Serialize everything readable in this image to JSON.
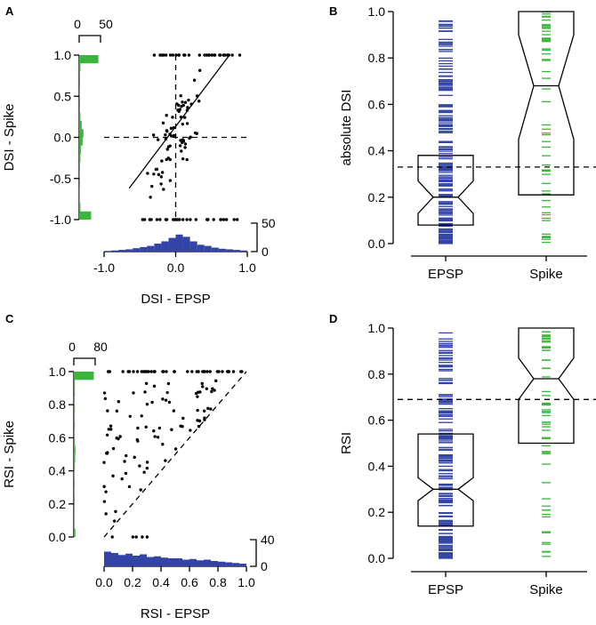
{
  "colors": {
    "epsp": "#3344a6",
    "spike": "#3cb53c",
    "dots": "#000000"
  },
  "panel_labels": [
    "A",
    "B",
    "C",
    "D"
  ],
  "chart_data": [
    {
      "panel": "A",
      "type": "scatter",
      "xlabel": "DSI - EPSP",
      "ylabel": "DSI - Spike",
      "xlim": [
        -1.0,
        1.0
      ],
      "ylim": [
        -1.0,
        1.0
      ],
      "x_ticks": [
        "-1.0",
        "0.0",
        "1.0"
      ],
      "y_ticks": [
        "-1.0",
        "-0.5",
        "0.0",
        "0.5",
        "1.0"
      ],
      "fit_line": {
        "x": [
          -0.65,
          0.75
        ],
        "y": [
          -0.62,
          1.0
        ]
      },
      "ref_lines": {
        "x": 0,
        "y": 0
      },
      "top_hist": {
        "ticks": [
          "50",
          "0"
        ],
        "max": 50,
        "bins": [
          -1.0,
          -0.9,
          -0.8,
          -0.7,
          -0.6,
          -0.5,
          -0.4,
          -0.3,
          -0.2,
          -0.1,
          0.0,
          0.1,
          0.2,
          0.3,
          0.4,
          0.5,
          0.6,
          0.7,
          0.8,
          0.9
        ],
        "counts": [
          1,
          2,
          3,
          4,
          6,
          8,
          10,
          14,
          18,
          24,
          30,
          26,
          18,
          12,
          10,
          7,
          5,
          4,
          3,
          2
        ]
      },
      "side_hist": {
        "ticks": [
          "0",
          "50"
        ],
        "max": 50,
        "bins": [
          -1.0,
          -0.9,
          -0.8,
          -0.7,
          -0.6,
          -0.5,
          -0.4,
          -0.3,
          -0.2,
          -0.1,
          0.0,
          0.1,
          0.2,
          0.3,
          0.4,
          0.5,
          0.6,
          0.7,
          0.8,
          0.9
        ],
        "counts": [
          28,
          3,
          1,
          1,
          2,
          1,
          2,
          3,
          4,
          8,
          10,
          6,
          3,
          2,
          2,
          1,
          2,
          2,
          3,
          45
        ]
      }
    },
    {
      "panel": "B",
      "type": "box",
      "ylabel": "absolute DSI",
      "ylim": [
        0,
        1.0
      ],
      "y_ticks": [
        "0.0",
        "0.2",
        "0.4",
        "0.6",
        "0.8",
        "1.0"
      ],
      "categories": [
        "EPSP",
        "Spike"
      ],
      "threshold": 0.33,
      "boxes": [
        {
          "q1": 0.08,
          "median": 0.2,
          "q3": 0.38,
          "notch_low": 0.13,
          "notch_high": 0.27
        },
        {
          "q1": 0.21,
          "median": 0.68,
          "q3": 1.0,
          "notch_low": 0.45,
          "notch_high": 0.9
        }
      ]
    },
    {
      "panel": "C",
      "type": "scatter",
      "xlabel": "RSI - EPSP",
      "ylabel": "RSI - Spike",
      "xlim": [
        0,
        1.0
      ],
      "ylim": [
        0,
        1.0
      ],
      "x_ticks": [
        "0.0",
        "0.2",
        "0.4",
        "0.6",
        "0.8",
        "1.0"
      ],
      "y_ticks": [
        "0.0",
        "0.2",
        "0.4",
        "0.6",
        "0.8",
        "1.0"
      ],
      "diag_line": {
        "x": [
          0,
          1.0
        ],
        "y": [
          0,
          1.0
        ]
      },
      "top_hist": {
        "ticks": [
          "40",
          "0"
        ],
        "max": 40,
        "bins": [
          0.0,
          0.05,
          0.1,
          0.15,
          0.2,
          0.25,
          0.3,
          0.35,
          0.4,
          0.45,
          0.5,
          0.55,
          0.6,
          0.65,
          0.7,
          0.75,
          0.8,
          0.85,
          0.9,
          0.95
        ],
        "counts": [
          22,
          20,
          17,
          19,
          16,
          18,
          14,
          15,
          13,
          12,
          12,
          10,
          11,
          9,
          10,
          8,
          7,
          6,
          5,
          4
        ]
      },
      "side_hist": {
        "ticks": [
          "0",
          "80"
        ],
        "max": 80,
        "bins": [
          0.0,
          0.05,
          0.1,
          0.15,
          0.2,
          0.25,
          0.3,
          0.35,
          0.4,
          0.45,
          0.5,
          0.55,
          0.6,
          0.65,
          0.7,
          0.75,
          0.8,
          0.85,
          0.9,
          0.95
        ],
        "counts": [
          6,
          1,
          1,
          2,
          3,
          2,
          3,
          2,
          4,
          5,
          6,
          4,
          3,
          4,
          3,
          4,
          3,
          4,
          4,
          75
        ]
      }
    },
    {
      "panel": "D",
      "type": "box",
      "ylabel": "RSI",
      "ylim": [
        0,
        1.0
      ],
      "y_ticks": [
        "0.0",
        "0.2",
        "0.4",
        "0.6",
        "0.8",
        "1.0"
      ],
      "categories": [
        "EPSP",
        "Spike"
      ],
      "threshold": 0.69,
      "boxes": [
        {
          "q1": 0.14,
          "median": 0.3,
          "q3": 0.54,
          "notch_low": 0.25,
          "notch_high": 0.35
        },
        {
          "q1": 0.5,
          "median": 0.78,
          "q3": 1.0,
          "notch_low": 0.69,
          "notch_high": 0.87
        }
      ]
    }
  ]
}
